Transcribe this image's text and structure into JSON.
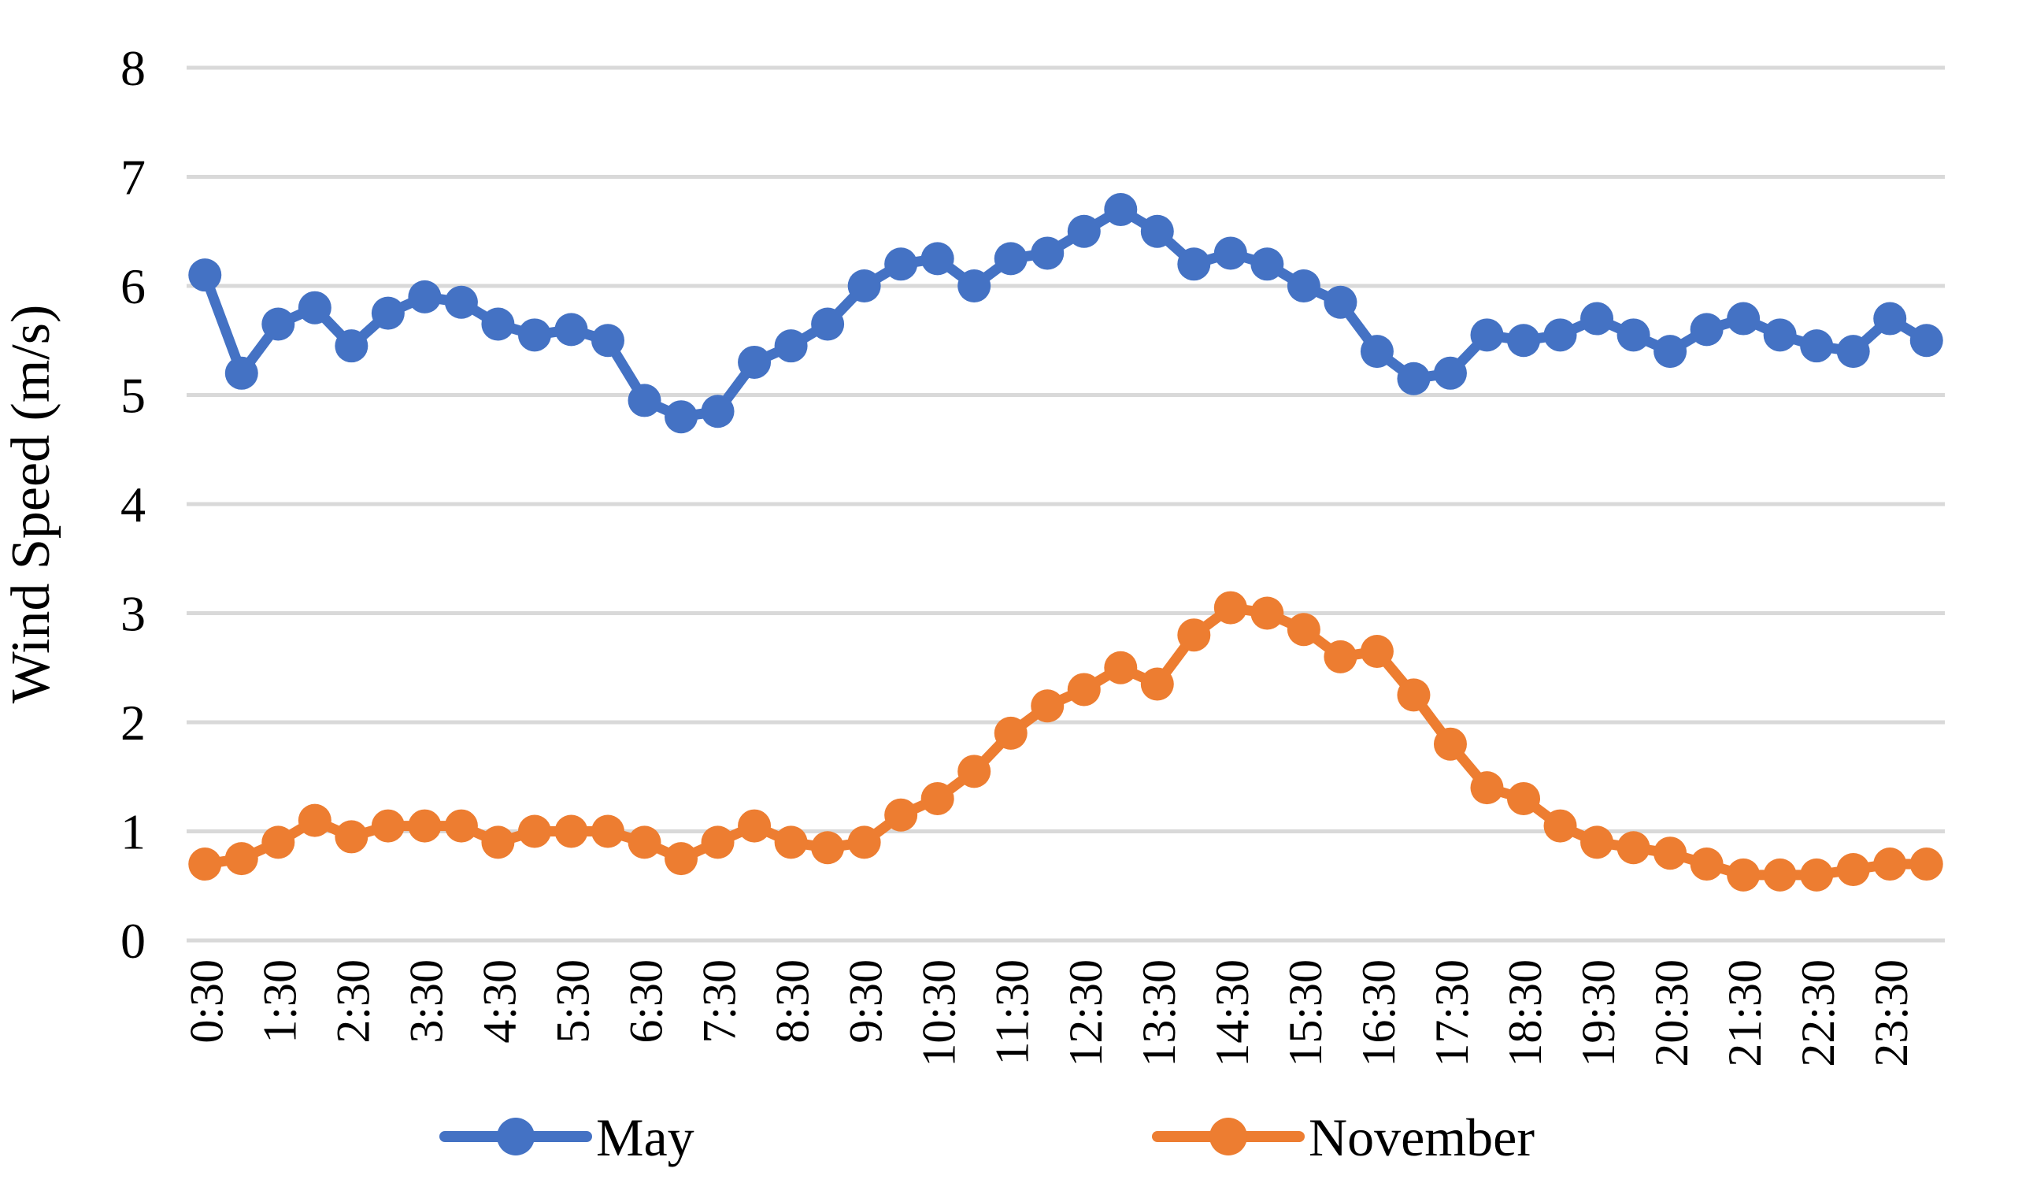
{
  "chart_data": {
    "type": "line",
    "title": "",
    "xlabel": "",
    "ylabel": "Wind Speed (m/s)",
    "ylim": [
      0,
      8
    ],
    "y_ticks": [
      "0",
      "1",
      "2",
      "3",
      "4",
      "5",
      "6",
      "7",
      "8"
    ],
    "grid": "horizontal",
    "legend_position": "bottom",
    "x_tick_every": 2,
    "categories": [
      "0:30",
      "1:00",
      "1:30",
      "2:00",
      "2:30",
      "3:00",
      "3:30",
      "4:00",
      "4:30",
      "5:00",
      "5:30",
      "6:00",
      "6:30",
      "7:00",
      "7:30",
      "8:00",
      "8:30",
      "9:00",
      "9:30",
      "10:00",
      "10:30",
      "11:00",
      "11:30",
      "12:00",
      "12:30",
      "13:00",
      "13:30",
      "14:00",
      "14:30",
      "15:00",
      "15:30",
      "16:00",
      "16:30",
      "17:00",
      "17:30",
      "18:00",
      "18:30",
      "19:00",
      "19:30",
      "20:00",
      "20:30",
      "21:00",
      "21:30",
      "22:00",
      "22:30",
      "23:00",
      "23:30",
      "24:00"
    ],
    "x_tick_labels": [
      "0:30",
      "1:30",
      "2:30",
      "3:30",
      "4:30",
      "5:30",
      "6:30",
      "7:30",
      "8:30",
      "9:30",
      "10:30",
      "11:30",
      "12:30",
      "13:30",
      "14:30",
      "15:30",
      "16:30",
      "17:30",
      "18:30",
      "19:30",
      "20:30",
      "21:30",
      "22:30",
      "23:30"
    ],
    "series": [
      {
        "name": "May",
        "color": "#4472C4",
        "values": [
          6.1,
          5.2,
          5.65,
          5.8,
          5.45,
          5.75,
          5.9,
          5.85,
          5.65,
          5.55,
          5.6,
          5.5,
          4.95,
          4.8,
          4.85,
          5.3,
          5.45,
          5.65,
          6.0,
          6.2,
          6.25,
          6.0,
          6.25,
          6.3,
          6.5,
          6.7,
          6.5,
          6.2,
          6.3,
          6.2,
          6.0,
          5.85,
          5.4,
          5.15,
          5.2,
          5.55,
          5.5,
          5.55,
          5.7,
          5.55,
          5.4,
          5.6,
          5.7,
          5.55,
          5.45,
          5.4,
          5.7,
          5.5
        ]
      },
      {
        "name": "November",
        "color": "#ED7D31",
        "values": [
          0.7,
          0.75,
          0.9,
          1.1,
          0.95,
          1.05,
          1.05,
          1.05,
          0.9,
          1.0,
          1.0,
          1.0,
          0.9,
          0.75,
          0.9,
          1.05,
          0.9,
          0.85,
          0.9,
          1.15,
          1.3,
          1.55,
          1.9,
          2.15,
          2.3,
          2.5,
          2.35,
          2.8,
          3.05,
          3.0,
          2.85,
          2.6,
          2.65,
          2.25,
          1.8,
          1.4,
          1.3,
          1.05,
          0.9,
          0.85,
          0.8,
          0.7,
          0.6,
          0.6,
          0.6,
          0.65,
          0.7,
          0.7
        ]
      }
    ]
  },
  "legend": {
    "may_label": "May",
    "november_label": "November"
  },
  "colors": {
    "gridline": "#D9D9D9",
    "may": "#4472C4",
    "november": "#ED7D31"
  }
}
